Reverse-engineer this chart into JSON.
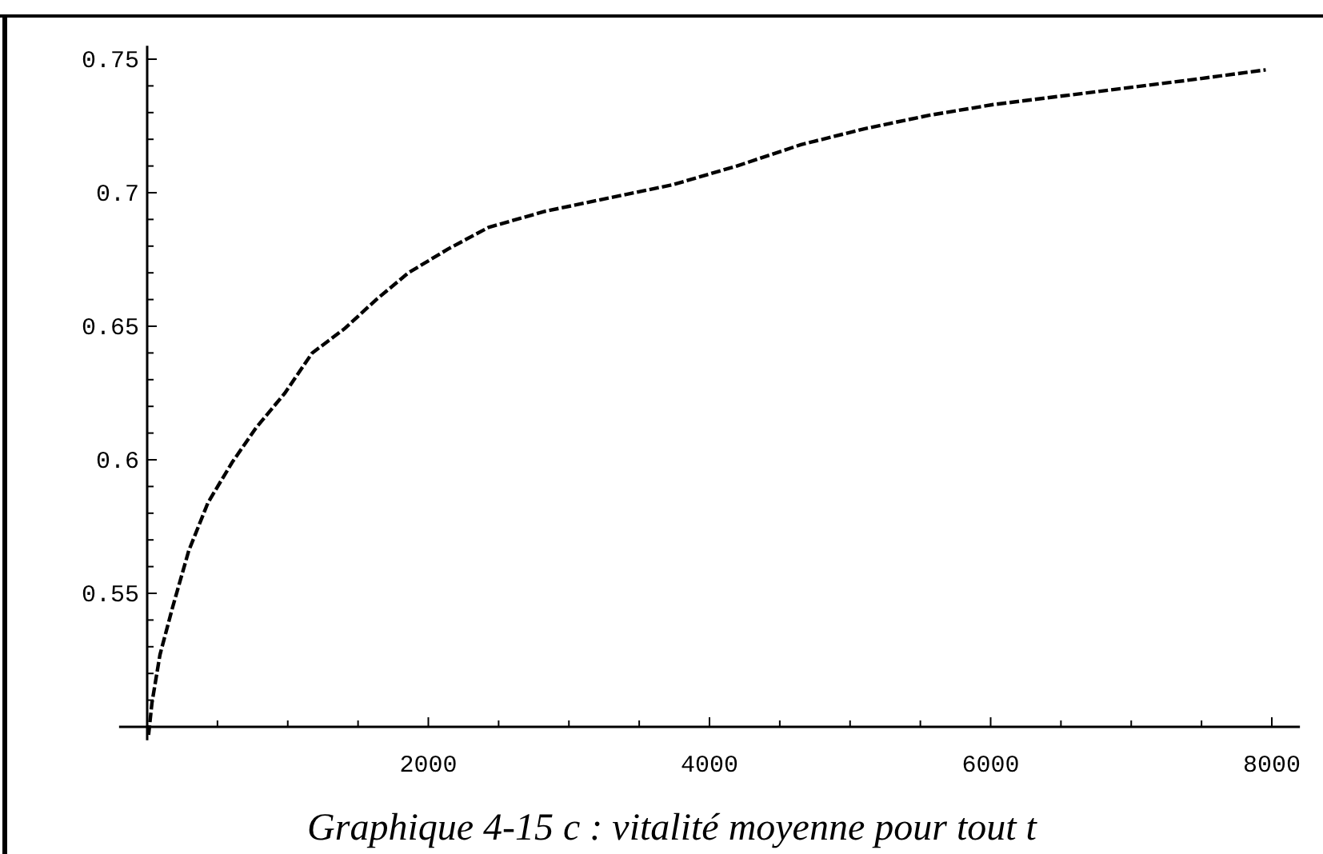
{
  "chart_data": {
    "type": "line",
    "x": [
      10,
      34,
      91,
      182,
      296,
      433,
      604,
      775,
      980,
      1174,
      1402,
      1630,
      1858,
      2143,
      2428,
      2827,
      3283,
      3739,
      4195,
      4651,
      5107,
      5563,
      6019,
      6475,
      6931,
      7387,
      7957
    ],
    "series": [
      {
        "color": "#000000",
        "values": [
          0.497,
          0.509,
          0.527,
          0.545,
          0.566,
          0.584,
          0.599,
          0.612,
          0.625,
          0.64,
          0.649,
          0.66,
          0.67,
          0.679,
          0.687,
          0.693,
          0.698,
          0.703,
          0.71,
          0.718,
          0.724,
          0.729,
          0.733,
          0.736,
          0.739,
          0.742,
          0.746
        ]
      }
    ],
    "xlim": [
      -200,
      8200
    ],
    "ylim": [
      0.495,
      0.755
    ],
    "xticks": [
      {
        "value": 500,
        "label": null
      },
      {
        "value": 1000,
        "label": null
      },
      {
        "value": 1500,
        "label": null
      },
      2000,
      {
        "value": 2500,
        "label": null
      },
      {
        "value": 3000,
        "label": null
      },
      {
        "value": 3500,
        "label": null
      },
      4000,
      {
        "value": 4500,
        "label": null
      },
      {
        "value": 5000,
        "label": null
      },
      {
        "value": 5500,
        "label": null
      },
      6000,
      {
        "value": 6500,
        "label": null
      },
      {
        "value": 7000,
        "label": null
      },
      {
        "value": 7500,
        "label": null
      },
      8000
    ],
    "yticks": [
      {
        "value": 0.51,
        "label": null
      },
      {
        "value": 0.52,
        "label": null
      },
      {
        "value": 0.53,
        "label": null
      },
      {
        "value": 0.54,
        "label": null
      },
      0.55,
      {
        "value": 0.56,
        "label": null
      },
      {
        "value": 0.57,
        "label": null
      },
      {
        "value": 0.58,
        "label": null
      },
      {
        "value": 0.59,
        "label": null
      },
      0.6,
      {
        "value": 0.61,
        "label": null
      },
      {
        "value": 0.62,
        "label": null
      },
      {
        "value": 0.63,
        "label": null
      },
      {
        "value": 0.64,
        "label": null
      },
      0.65,
      {
        "value": 0.66,
        "label": null
      },
      {
        "value": 0.67,
        "label": null
      },
      {
        "value": 0.68,
        "label": null
      },
      {
        "value": 0.69,
        "label": null
      },
      0.7,
      {
        "value": 0.71,
        "label": null
      },
      {
        "value": 0.72,
        "label": null
      },
      {
        "value": 0.73,
        "label": null
      },
      {
        "value": 0.74,
        "label": null
      },
      0.75
    ],
    "line_style": "dashed",
    "marker": "none",
    "annotations": [
      "Graphique 4-15  c : vitalité moyenne pour tout t"
    ]
  }
}
